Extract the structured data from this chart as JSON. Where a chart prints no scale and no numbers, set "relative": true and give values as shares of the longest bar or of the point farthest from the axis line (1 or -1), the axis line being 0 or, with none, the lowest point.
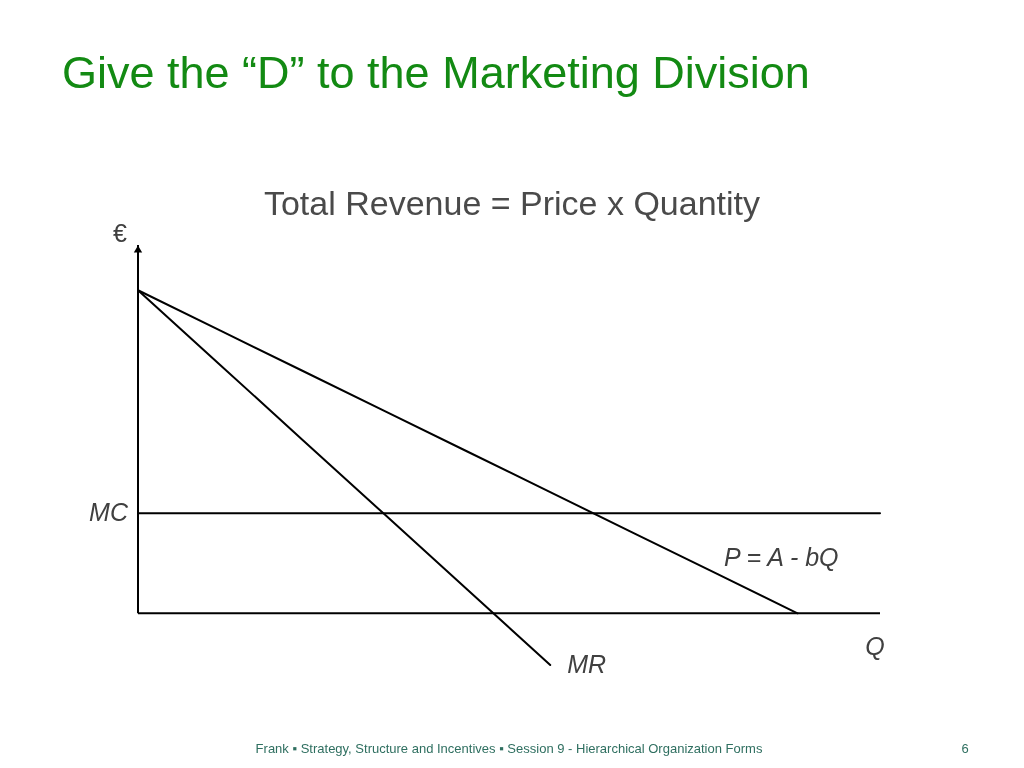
{
  "chart_data": {
    "type": "line",
    "relative": true,
    "title": "Give the “D” to the Marketing Division",
    "subtitle": "Total Revenue = Price x Quantity",
    "xlabel": "Q",
    "ylabel": "€",
    "categories": [
      null,
      null,
      null,
      null,
      null,
      null,
      null,
      null,
      null,
      null
    ],
    "series": [
      {
        "name": "P = A - bQ",
        "color": "#000000",
        "values": [
          1,
          0.875,
          0.75,
          0.625,
          0.5,
          0.375,
          0.25,
          0.125,
          0,
          null
        ]
      },
      {
        "name": "MR",
        "color": "#000000",
        "values": [
          1,
          0.768,
          0.536,
          0.304,
          0.072,
          -0.16,
          null,
          null,
          null,
          null
        ]
      },
      {
        "name": "MC",
        "color": "#000000",
        "values": [
          0.31,
          0.31,
          0.31,
          0.31,
          0.31,
          0.31,
          0.31,
          0.31,
          0.31,
          0.31
        ]
      }
    ],
    "annotations": [
      "Frank ▪ Strategy, Structure and Incentives ▪ Session 9 - Hierarchical Organization Forms",
      "6"
    ]
  }
}
